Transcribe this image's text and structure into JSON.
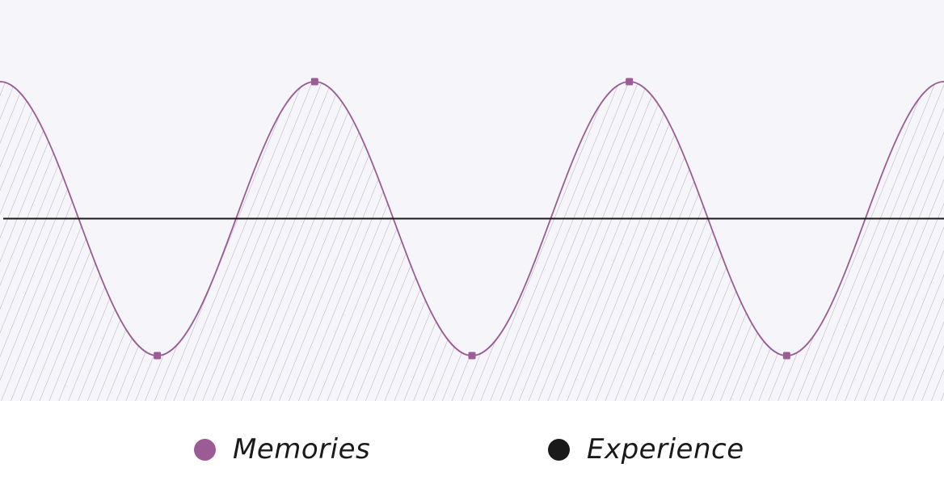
{
  "colors": {
    "memories": "#9b5c96",
    "experience": "#1a1a1a",
    "plot_background": "#f6f6fa",
    "hatch": "#b8a9c2"
  },
  "legend": {
    "memories_label": "Memories",
    "experience_label": "Experience"
  },
  "chart_data": {
    "type": "line",
    "title": "",
    "xlabel": "",
    "ylabel": "",
    "grid": false,
    "legend_position": "bottom",
    "xlim": [
      0,
      6
    ],
    "ylim": [
      -1.33,
      1.0
    ],
    "series": [
      {
        "name": "Memories",
        "style": "smooth-wave-with-hatched-area",
        "points": [
          {
            "x": 0,
            "y": 1,
            "marker": false
          },
          {
            "x": 1,
            "y": -1,
            "marker": true
          },
          {
            "x": 2,
            "y": 1,
            "marker": true
          },
          {
            "x": 3,
            "y": -1,
            "marker": true
          },
          {
            "x": 4,
            "y": 1,
            "marker": true
          },
          {
            "x": 5,
            "y": -1,
            "marker": true
          },
          {
            "x": 6,
            "y": 1,
            "marker": false
          }
        ]
      },
      {
        "name": "Experience",
        "style": "flat-line",
        "points": [
          {
            "x": 0,
            "y": 0
          },
          {
            "x": 6,
            "y": 0
          }
        ]
      }
    ]
  }
}
